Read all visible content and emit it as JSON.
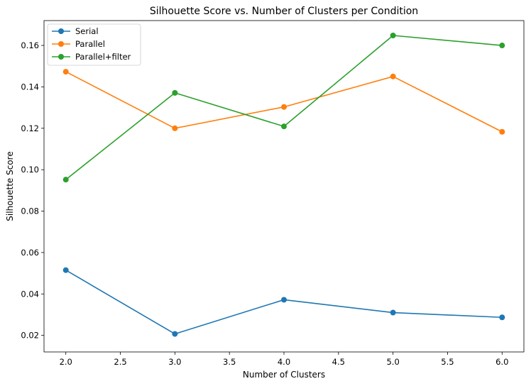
{
  "chart_data": {
    "type": "line",
    "title": "Silhouette Score vs. Number of Clusters per Condition",
    "xlabel": "Number of Clusters",
    "ylabel": "Silhouette Score",
    "x": [
      2,
      3,
      4,
      5,
      6
    ],
    "xlim": [
      1.8,
      6.2
    ],
    "ylim": [
      0.012,
      0.172
    ],
    "xticks": [
      "2.0",
      "2.5",
      "3.0",
      "3.5",
      "4.0",
      "4.5",
      "5.0",
      "5.5",
      "6.0"
    ],
    "yticks": [
      "0.02",
      "0.04",
      "0.06",
      "0.08",
      "0.10",
      "0.12",
      "0.14",
      "0.16"
    ],
    "grid": false,
    "legend_position": "top-left",
    "series": [
      {
        "name": "Serial",
        "color": "#1f77b4",
        "values": [
          0.0515,
          0.0207,
          0.0372,
          0.031,
          0.0287
        ]
      },
      {
        "name": "Parallel",
        "color": "#ff7f0e",
        "values": [
          0.1473,
          0.12,
          0.1303,
          0.145,
          0.1183
        ]
      },
      {
        "name": "Parallel+filter",
        "color": "#2ca02c",
        "values": [
          0.0952,
          0.1371,
          0.1209,
          0.1648,
          0.16
        ]
      }
    ]
  }
}
